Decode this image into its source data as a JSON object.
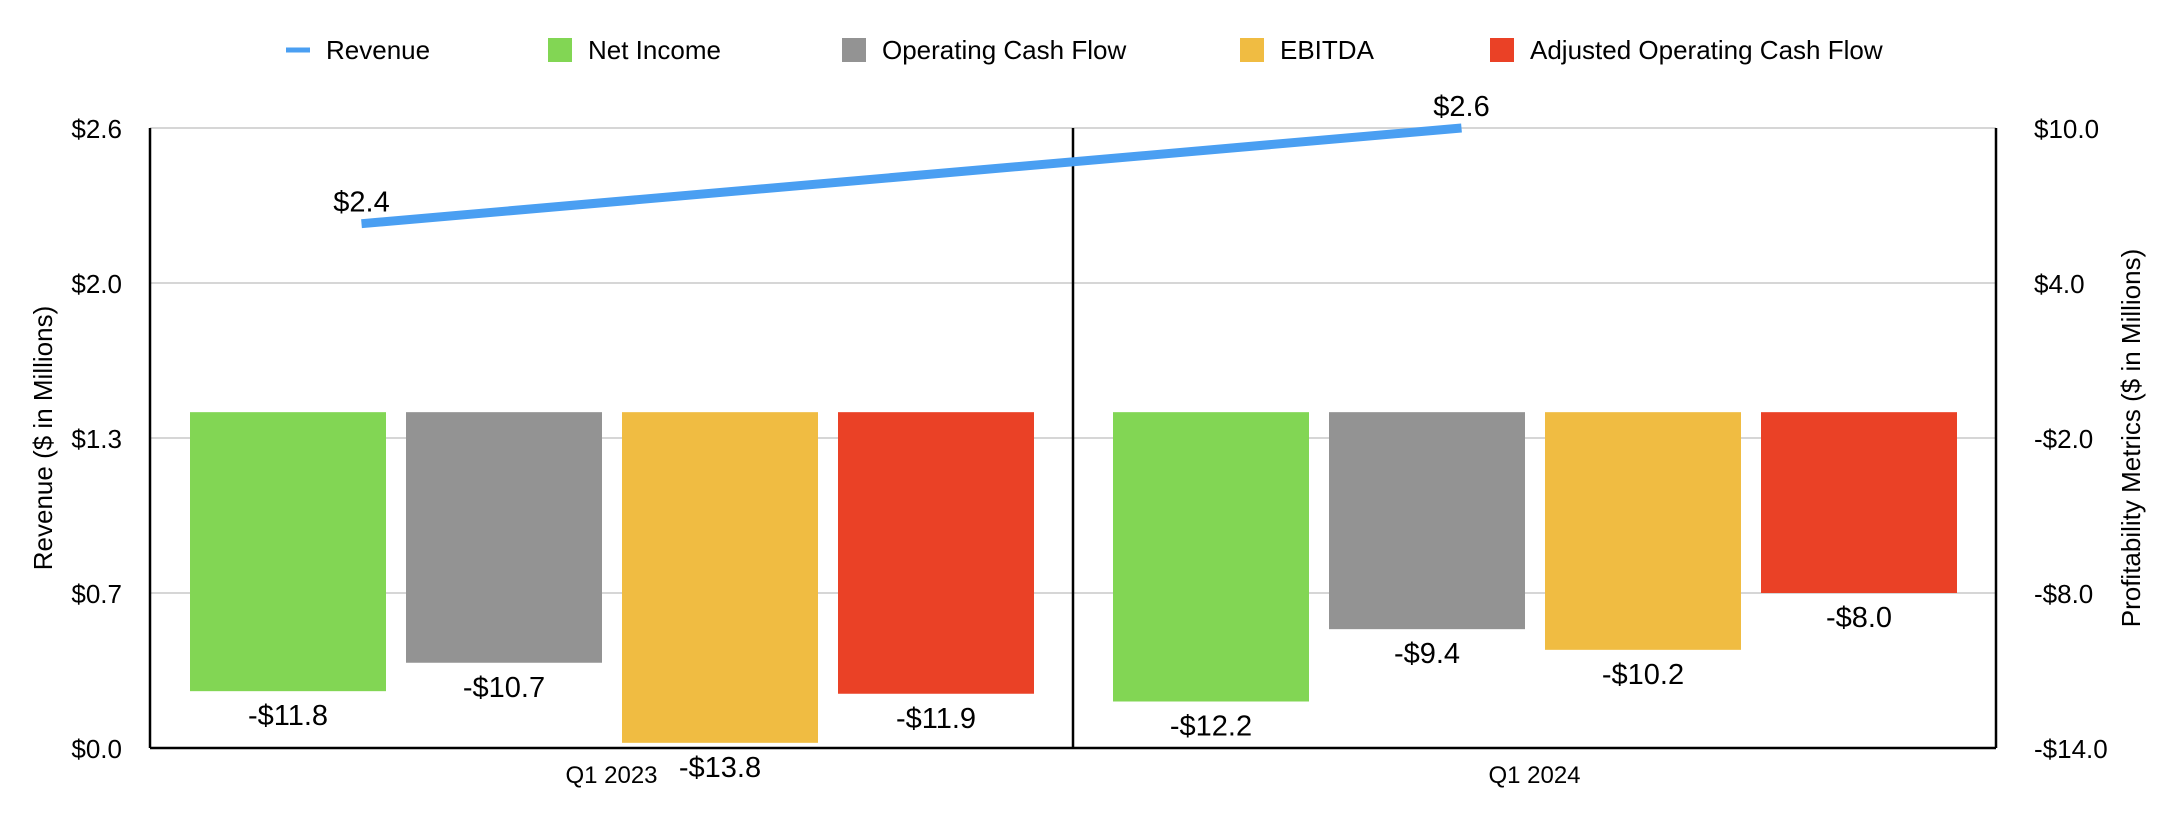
{
  "chart_data": {
    "type": "bar",
    "categories": [
      "Q1 2023",
      "Q1 2024"
    ],
    "y_left": {
      "label": "Revenue ($ in Millions)",
      "range": [
        0,
        2.6
      ],
      "ticks": [
        0.0,
        0.65,
        1.3,
        1.95,
        2.6
      ],
      "tick_labels": [
        "$0.0",
        "$0.7",
        "$1.3",
        "$2.0",
        "$2.6"
      ]
    },
    "y_right": {
      "label": "Profitability Metrics ($ in Millions)",
      "range": [
        -14,
        10
      ],
      "ticks": [
        -14,
        -8,
        -2,
        4,
        10
      ],
      "tick_labels": [
        "-$14.0",
        "-$8.0",
        "-$2.0",
        "$4.0",
        "$10.0"
      ]
    },
    "series": [
      {
        "name": "Revenue",
        "type": "line",
        "axis": "left",
        "color": "#4a9ff2",
        "values": [
          2.4,
          2.6
        ],
        "labels": [
          "$2.4",
          "$2.6"
        ]
      },
      {
        "name": "Net Income",
        "type": "bar",
        "axis": "right",
        "color": "#82d654",
        "values": [
          -11.8,
          -12.2
        ],
        "labels": [
          "-$11.8",
          "-$12.2"
        ]
      },
      {
        "name": "Operating Cash Flow",
        "type": "bar",
        "axis": "right",
        "color": "#939393",
        "values": [
          -10.7,
          -9.4
        ],
        "labels": [
          "-$10.7",
          "-$9.4"
        ]
      },
      {
        "name": "EBITDA",
        "type": "bar",
        "axis": "right",
        "color": "#f0bc42",
        "values": [
          -13.8,
          -10.2
        ],
        "labels": [
          "-$13.8",
          "-$10.2"
        ]
      },
      {
        "name": "Adjusted Operating Cash Flow",
        "type": "bar",
        "axis": "right",
        "color": "#ea4126",
        "values": [
          -11.9,
          -8.0
        ],
        "labels": [
          "-$11.9",
          "-$8.0"
        ]
      }
    ],
    "legend_position": "top",
    "grid": true
  }
}
